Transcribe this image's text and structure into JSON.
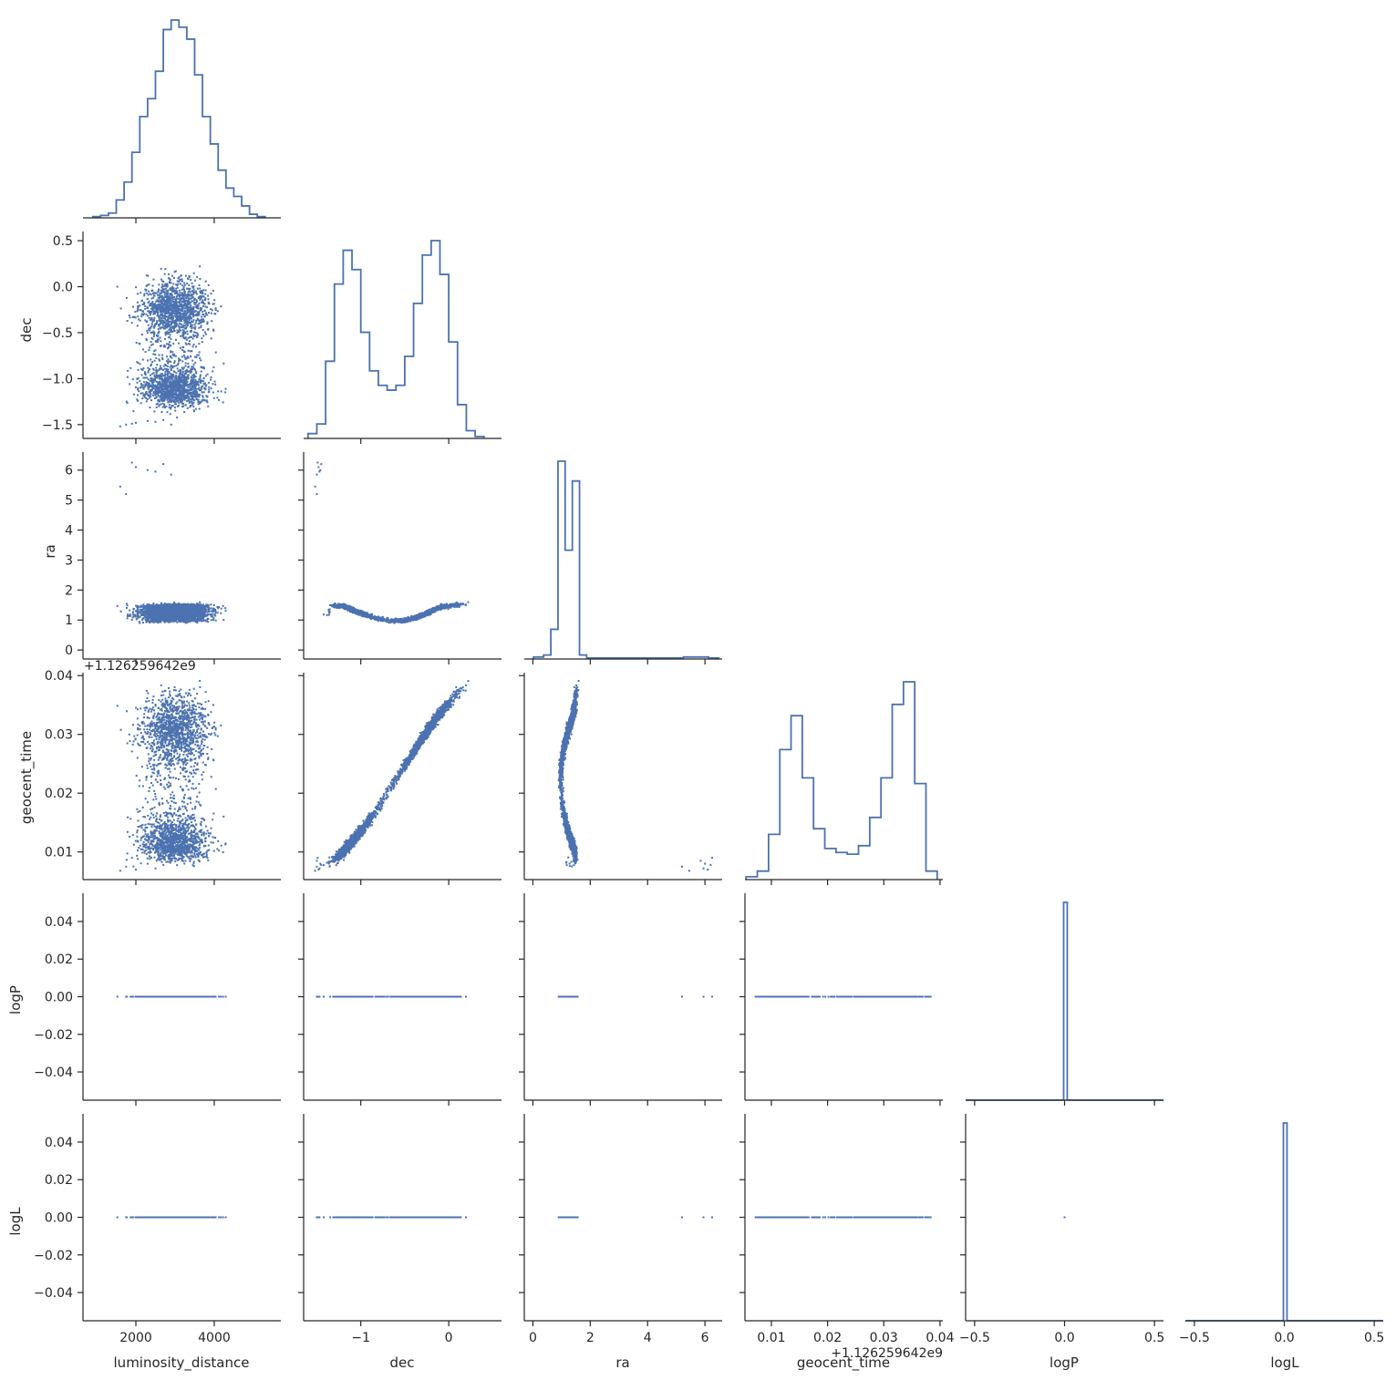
{
  "colors": {
    "series": "#4c72b0",
    "axis": "#262626",
    "background": "#ffffff"
  },
  "chart_data": {
    "type": "scatter",
    "layout": "corner pair plot (lower triangle scatter, diagonal step histograms)",
    "variables": [
      "luminosity_distance",
      "dec",
      "ra",
      "geocent_time",
      "logP",
      "logL"
    ],
    "offset_text": "+1.126259642e9",
    "axes": {
      "luminosity_distance": {
        "lim": [
          650,
          5700
        ],
        "ticks": [
          2000,
          4000
        ],
        "tick_labels": [
          "2000",
          "4000"
        ]
      },
      "dec": {
        "lim": [
          -1.65,
          0.6
        ],
        "ticks": [
          -1.5,
          -1.0,
          -0.5,
          0.0,
          0.5
        ],
        "tick_labels": [
          "−1.5",
          "−1.0",
          "−0.5",
          "0.0",
          "0.5"
        ],
        "x_ticks": [
          -1,
          0
        ],
        "x_tick_labels": [
          "−1",
          "0"
        ]
      },
      "ra": {
        "lim": [
          -0.3,
          6.6
        ],
        "ticks": [
          0,
          1,
          2,
          3,
          4,
          5,
          6
        ],
        "tick_labels": [
          "0",
          "1",
          "2",
          "3",
          "4",
          "5",
          "6"
        ],
        "x_ticks": [
          0,
          2,
          4,
          6
        ],
        "x_tick_labels": [
          "0",
          "2",
          "4",
          "6"
        ]
      },
      "geocent_time": {
        "lim": [
          0.0053,
          0.0405
        ],
        "ticks": [
          0.01,
          0.02,
          0.03,
          0.04
        ],
        "tick_labels": [
          "0.01",
          "0.02",
          "0.03",
          "0.04"
        ]
      },
      "logP": {
        "lim": [
          -0.055,
          0.055
        ],
        "ticks": [
          -0.04,
          -0.02,
          0.0,
          0.02,
          0.04
        ],
        "tick_labels": [
          "−0.04",
          "−0.02",
          "0.00",
          "0.02",
          "0.04"
        ],
        "x_lim": [
          -0.55,
          0.55
        ],
        "x_ticks": [
          -0.5,
          0.0,
          0.5
        ],
        "x_tick_labels": [
          "−0.5",
          "0.0",
          "0.5"
        ]
      },
      "logL": {
        "lim": [
          -0.055,
          0.055
        ],
        "ticks": [
          -0.04,
          -0.02,
          0.0,
          0.02,
          0.04
        ],
        "tick_labels": [
          "−0.04",
          "−0.02",
          "0.00",
          "0.02",
          "0.04"
        ],
        "x_lim": [
          -0.55,
          0.55
        ],
        "x_ticks": [
          -0.5,
          0.0,
          0.5
        ],
        "x_tick_labels": [
          "−0.5",
          "0.0",
          "0.5"
        ]
      }
    },
    "histograms": {
      "luminosity_distance": {
        "x": [
          1000,
          1200,
          1400,
          1600,
          1800,
          2000,
          2200,
          2400,
          2600,
          2800,
          3000,
          3200,
          3400,
          3600,
          3800,
          4000,
          4200,
          4400,
          4600,
          4800,
          5000,
          5200
        ],
        "counts": [
          1,
          2,
          4,
          15,
          30,
          55,
          85,
          100,
          123,
          158,
          166,
          160,
          150,
          120,
          85,
          62,
          40,
          25,
          18,
          10,
          3,
          1
        ]
      },
      "dec": {
        "x": [
          -1.55,
          -1.45,
          -1.35,
          -1.25,
          -1.15,
          -1.05,
          -0.95,
          -0.85,
          -0.75,
          -0.65,
          -0.55,
          -0.45,
          -0.35,
          -0.25,
          -0.15,
          -0.05,
          0.05,
          0.15,
          0.25,
          0.35
        ],
        "counts": [
          5,
          15,
          80,
          160,
          195,
          175,
          110,
          70,
          55,
          50,
          55,
          85,
          140,
          190,
          205,
          170,
          100,
          35,
          8,
          2
        ]
      },
      "ra": {
        "x": [
          0.25,
          0.5,
          0.75,
          1.0,
          1.25,
          1.5,
          1.75,
          2.0,
          3.0,
          4.0,
          5.0,
          5.5,
          6.0,
          6.25
        ],
        "counts": [
          0.01,
          0.02,
          0.15,
          1.0,
          0.55,
          0.9,
          0.02,
          0.005,
          0.005,
          0.005,
          0.005,
          0.01,
          0.01,
          0.005
        ]
      },
      "geocent_time": {
        "x": [
          0.0065,
          0.0085,
          0.0105,
          0.0125,
          0.0145,
          0.0165,
          0.0185,
          0.0205,
          0.0225,
          0.0245,
          0.0265,
          0.0285,
          0.0305,
          0.0325,
          0.0345,
          0.0365,
          0.0385
        ],
        "counts": [
          5,
          15,
          80,
          230,
          290,
          180,
          90,
          55,
          48,
          45,
          60,
          110,
          180,
          310,
          350,
          170,
          15
        ]
      },
      "logP": {
        "x": [
          0.0
        ],
        "counts": [
          1
        ]
      },
      "logL": {
        "x": [
          0.0
        ],
        "counts": [
          1
        ]
      }
    },
    "scatter_pairs": [
      {
        "x": "luminosity_distance",
        "y": "dec",
        "pattern": "two horizontal clusters near dec −0.2 and −1.1 spanning distance ~1000–5000"
      },
      {
        "x": "luminosity_distance",
        "y": "ra",
        "pattern": "dense band at ra ~1.0–1.5 with a few outliers near ra ~5.2–6.2"
      },
      {
        "x": "dec",
        "y": "ra",
        "pattern": "band ra ~1.45 at dec −1.2 falling to ~1.0 near dec −0.3; outliers near ra 6 at dec −1.5"
      },
      {
        "x": "ra",
        "y": "geocent_time",
        "pattern": "narrow curved band around ra ~1.1–1.5; outliers near ra 5.5–6.2"
      },
      {
        "x": "luminosity_distance",
        "y": "geocent_time",
        "pattern": "two clusters near 0.015 and 0.033"
      },
      {
        "x": "dec",
        "y": "geocent_time",
        "pattern": "tight increasing curve from (−1.55, 0.007) to (0.5, 0.039)"
      },
      {
        "x": "*",
        "y": "logP",
        "pattern": "all points at 0.0"
      },
      {
        "x": "*",
        "y": "logL",
        "pattern": "all points at 0.0"
      }
    ]
  }
}
